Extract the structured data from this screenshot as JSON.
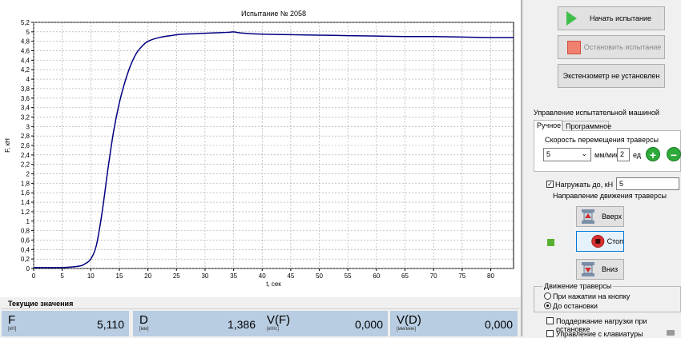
{
  "chart_data": {
    "type": "line",
    "title": "Испытание № 2058",
    "xlabel": "t, сек",
    "ylabel": "F, кН",
    "xlim": [
      0,
      84
    ],
    "ylim": [
      0,
      5.2
    ],
    "x_ticks": [
      "0",
      "5",
      "10",
      "15",
      "20",
      "25",
      "30",
      "35",
      "40",
      "45",
      "50",
      "55",
      "60",
      "65",
      "70",
      "75",
      "80"
    ],
    "y_ticks": [
      "0",
      "0,2",
      "0,4",
      "0,6",
      "0,8",
      "1",
      "1,2",
      "1,4",
      "1,6",
      "1,8",
      "2",
      "2,2",
      "2,4",
      "2,6",
      "2,8",
      "3",
      "3,2",
      "3,4",
      "3,6",
      "3,8",
      "4",
      "4,2",
      "4,4",
      "4,6",
      "4,8",
      "5",
      "5,2"
    ],
    "grid": true,
    "series": [
      {
        "color": "#000080",
        "x": [
          0,
          5,
          8,
          9,
          10,
          11,
          12,
          13,
          14,
          15,
          16,
          17,
          18,
          19,
          20,
          22,
          24,
          26,
          28,
          30,
          32,
          34,
          35,
          36,
          38,
          40,
          45,
          50,
          55,
          60,
          65,
          70,
          75,
          80,
          84
        ],
        "y": [
          0.02,
          0.02,
          0.05,
          0.1,
          0.2,
          0.5,
          1.2,
          2.1,
          2.9,
          3.5,
          3.95,
          4.3,
          4.55,
          4.7,
          4.8,
          4.88,
          4.92,
          4.95,
          4.96,
          4.97,
          4.98,
          4.99,
          5.0,
          4.98,
          4.96,
          4.95,
          4.94,
          4.93,
          4.92,
          4.91,
          4.9,
          4.9,
          4.89,
          4.88,
          4.88
        ]
      }
    ]
  },
  "controls": {
    "start_label": "Начать испытание",
    "stop_label": "Остановить испытание",
    "extensometer_label": "Экстензометр не установлен"
  },
  "machine": {
    "group_title": "Управление испытательной машиной",
    "tabs": [
      "Ручное",
      "Программное"
    ],
    "speed_title": "Скорость перемещения траверсы",
    "speed_value": "5",
    "speed_unit": "мм/мин",
    "step_value": "2",
    "step_unit": "ед",
    "load_label": "Нагружать до, кН",
    "load_value": "5",
    "direction_title": "Направление движения траверсы",
    "up_label": "Вверх",
    "stop_label": "Стоп",
    "down_label": "Вниз",
    "motion_title": "Движение траверсы",
    "motion_options": [
      "При нажатии на кнопку",
      "До остановки"
    ],
    "hold_label": "Поддержание нагрузки при остановке",
    "keyboard_label": "Управление с клавиатуры"
  },
  "stats": {
    "title": "Текущие значения",
    "items": [
      {
        "name": "F",
        "unit": "[кН]",
        "value": "5,110"
      },
      {
        "name": "D",
        "unit": "[мм]",
        "value": "1,386"
      },
      {
        "name": "V(F)",
        "unit": "[кН/с]",
        "value": "0,000"
      },
      {
        "name": "V(D)",
        "unit": "[мм/мин]",
        "value": "0,000"
      }
    ]
  },
  "colors": {
    "accent": "#3fbf4a",
    "stat_bg": "#b8cde2",
    "series": "#000080"
  }
}
